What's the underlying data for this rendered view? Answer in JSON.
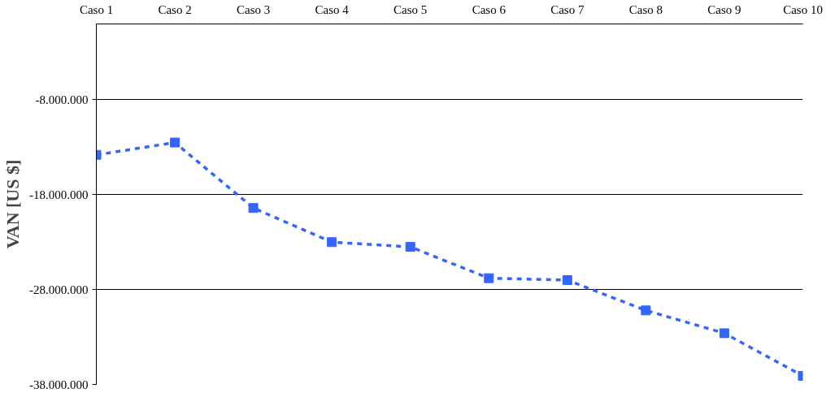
{
  "chart_data": {
    "type": "line",
    "ylabel": "VAN [US $]",
    "categories": [
      "Caso 1",
      "Caso 2",
      "Caso 3",
      "Caso 4",
      "Caso 5",
      "Caso 6",
      "Caso 7",
      "Caso 8",
      "Caso 9",
      "Caso 10"
    ],
    "series": [
      {
        "color": "#3366ff",
        "values": [
          -13800000,
          -12500000,
          -19400000,
          -23000000,
          -23500000,
          -26800000,
          -27000000,
          -30200000,
          -32600000,
          -37100000
        ]
      }
    ],
    "ylim": [
      -38000000,
      0
    ],
    "yticks": [
      {
        "value": -38000000,
        "label": "-38.000.000"
      },
      {
        "value": -28000000,
        "label": "-28.000.000"
      },
      {
        "value": -18000000,
        "label": "-18.000.000"
      },
      {
        "value": -8000000,
        "label": "-8.000.000"
      }
    ],
    "grid": "y",
    "marker": "square",
    "line_style": "dashed"
  }
}
